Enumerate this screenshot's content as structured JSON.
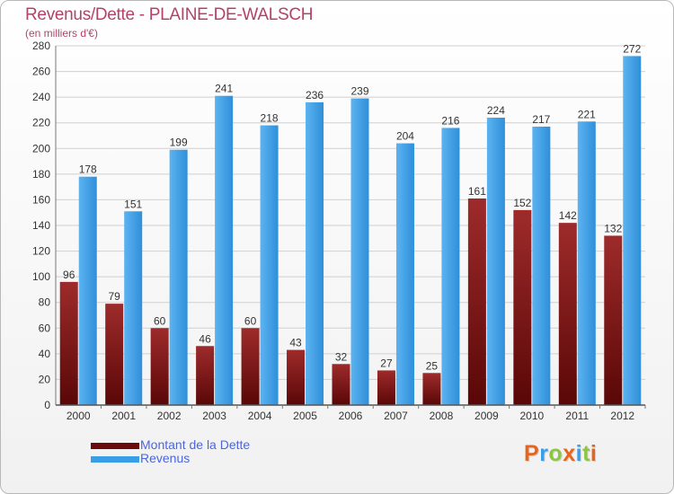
{
  "chart_data": {
    "type": "bar",
    "title": "Revenus/Dette - PLAINE-DE-WALSCH",
    "subtitle": "(en milliers d'€)",
    "categories": [
      "2000",
      "2001",
      "2002",
      "2003",
      "2004",
      "2005",
      "2006",
      "2007",
      "2008",
      "2009",
      "2010",
      "2011",
      "2012"
    ],
    "series": [
      {
        "name": "Montant de la Dette",
        "color": "#8b1a1a",
        "values": [
          96,
          79,
          60,
          46,
          60,
          43,
          32,
          27,
          25,
          161,
          152,
          142,
          132
        ]
      },
      {
        "name": "Revenus",
        "color": "#3a9ee6",
        "values": [
          178,
          151,
          199,
          241,
          218,
          236,
          239,
          204,
          216,
          224,
          217,
          221,
          272
        ]
      }
    ],
    "ylim": [
      0,
      280
    ],
    "yticks": [
      0,
      20,
      40,
      60,
      80,
      100,
      120,
      140,
      160,
      180,
      200,
      220,
      240,
      260,
      280
    ],
    "grid": true,
    "legend": "bottom-left",
    "logo_text": "Proxiti"
  }
}
